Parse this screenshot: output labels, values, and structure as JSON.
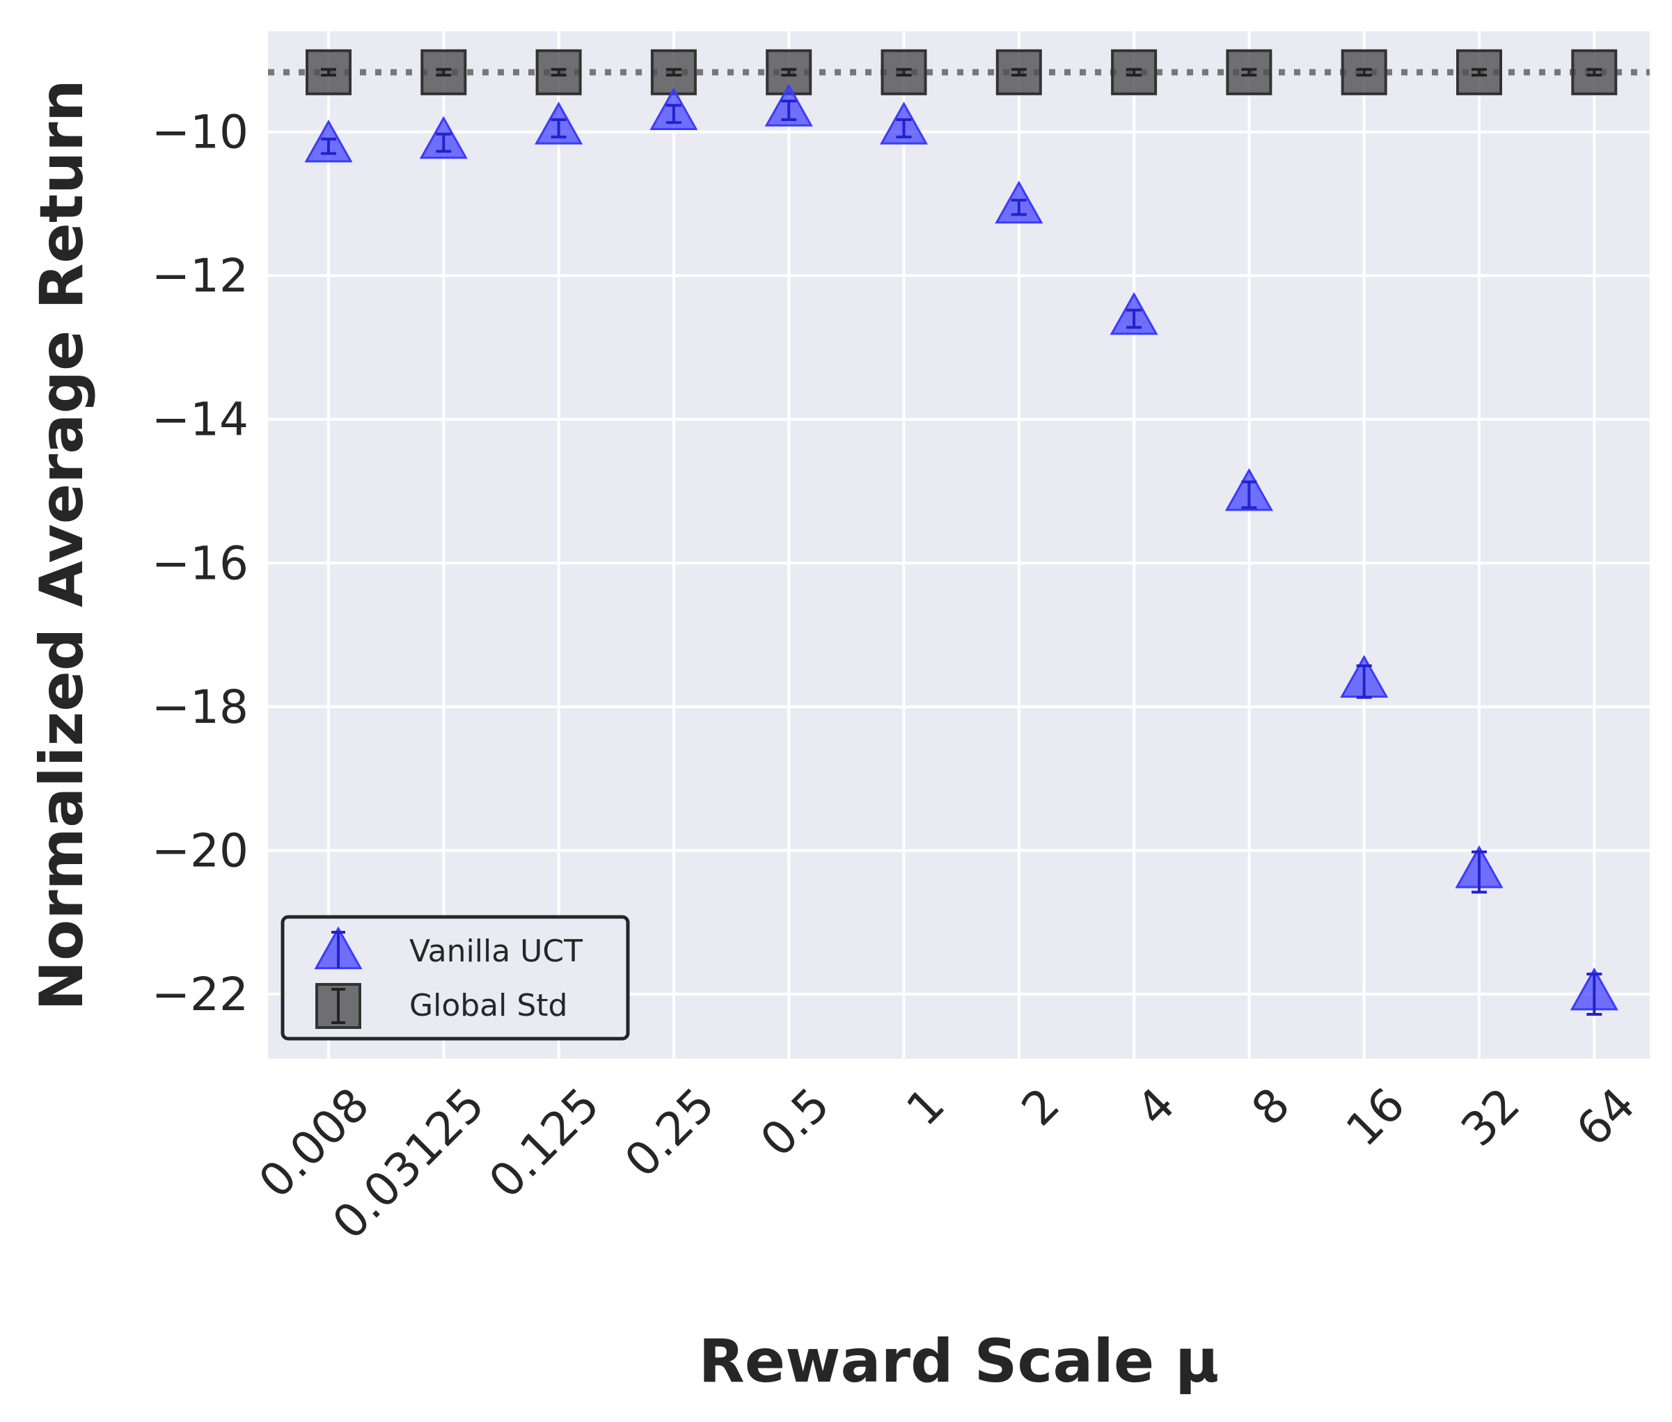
{
  "chart_data": {
    "type": "scatter",
    "xlabel": "Reward Scale μ",
    "ylabel": "Normalized Average Return",
    "categories": [
      "0.008",
      "0.03125",
      "0.125",
      "0.25",
      "0.5",
      "1",
      "2",
      "4",
      "8",
      "16",
      "32",
      "64"
    ],
    "ylim": [
      -22.9,
      -8.6
    ],
    "yticks": [
      -10,
      -12,
      -14,
      -16,
      -18,
      -20,
      -22
    ],
    "ytick_labels": [
      "−10",
      "−12",
      "−14",
      "−16",
      "−18",
      "−20",
      "−22"
    ],
    "grid": true,
    "legend_position": "lower-left",
    "reference_line": {
      "y": -9.17,
      "style": "dotted",
      "color": "#777777"
    },
    "series": [
      {
        "name": "Vanilla UCT",
        "marker": "triangle",
        "color": "#3b3bff",
        "values": [
          -10.2,
          -10.15,
          -9.95,
          -9.75,
          -9.7,
          -9.95,
          -11.05,
          -12.6,
          -15.05,
          -17.65,
          -20.3,
          -22.0
        ],
        "errors": [
          0.1,
          0.12,
          0.12,
          0.12,
          0.13,
          0.12,
          0.1,
          0.12,
          0.18,
          0.22,
          0.28,
          0.28
        ]
      },
      {
        "name": "Global Std",
        "marker": "square",
        "color": "#505050",
        "values": [
          -9.17,
          -9.17,
          -9.17,
          -9.17,
          -9.17,
          -9.17,
          -9.17,
          -9.17,
          -9.17,
          -9.17,
          -9.17,
          -9.17
        ],
        "errors": [
          0.04,
          0.04,
          0.04,
          0.04,
          0.04,
          0.04,
          0.04,
          0.04,
          0.04,
          0.04,
          0.04,
          0.04
        ]
      }
    ]
  }
}
